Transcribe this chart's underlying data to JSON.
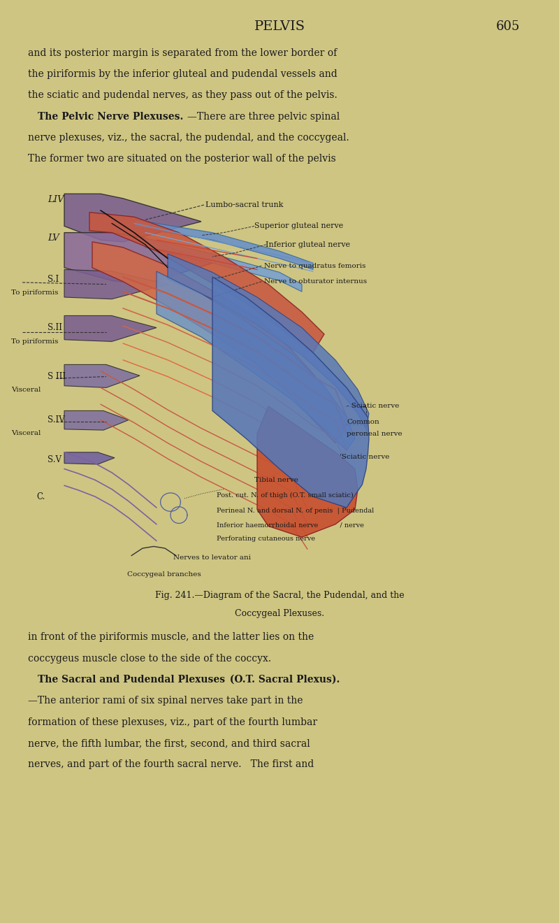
{
  "bg_color": "#cec583",
  "title": "PELVIS",
  "page_num": "605",
  "top_text_line1": "and its posterior margin is separated from the lower border of",
  "top_text_line2": "the piriformis by the inferior gluteal and pudendal vessels and",
  "top_text_line3": "the sciatic and pudendal nerves, as they pass out of the pelvis.",
  "top_text_line4_bold": "The Pelvic Nerve Plexuses.",
  "top_text_line4_rest": "—There are three pelvic spinal",
  "top_text_line5": "nerve plexuses, viz., the sacral, the pudendal, and the coccygeal.",
  "top_text_line6": "The former two are situated on the posterior wall of the pelvis",
  "caption1": "Fig. 241.—Diagram of the Sacral, the Pudendal, and the",
  "caption2": "Coccygeal Plexuses.",
  "bot_line1": "in front of the piriformis muscle, and the latter lies on the",
  "bot_line2": "coccygeus muscle close to the side of the coccyx.",
  "bot_line3_bold": "The Sacral and Pudendal Plexuses",
  "bot_line3_bold2": "(O.T. Sacral Plexus).",
  "bot_line4": "—The anterior rami of six spinal nerves take part in the",
  "bot_line5": "formation of these plexuses, viz., part of the fourth lumbar",
  "bot_line6": "nerve, the fifth lumbar, the first, second, and third sacral",
  "bot_line7": "nerves, and part of the fourth sacral nerve.   The first and",
  "label_LIV": "LIV",
  "label_LV": "LV",
  "label_SI": "S.I",
  "label_topir": "To piriformis",
  "label_SII": "S.II",
  "label_SIII": "S III",
  "label_visceral": "Visceral",
  "label_SIV": "S.IV",
  "label_SV": "S.V",
  "label_C": "C.",
  "label_lumbosacral": "Lumbo-sacral trunk",
  "label_supglut": "Superior gluteal nerve",
  "label_infglut": "Inferior gluteal nerve",
  "label_quadfem": "Nerve to quadratus femoris",
  "label_obturator": "Nerve to obturator internus",
  "label_sciatic1": "- Sciatic nerve",
  "label_common": "Common",
  "label_peroneal": "peroneal nerve",
  "label_sciatic2": "Sciatic nerve",
  "label_tibial": "Tibial nerve",
  "label_postcut": "Post. cut. N. of thigh (O.T. small sciatic)",
  "label_perineal": "Perineal N. and dorsal N. of penis  | Pudendal",
  "label_inferior": "Inferior haemorrhoidal nerve          / nerve",
  "label_perforating": "Perforating cutaneous nerve",
  "label_levator": "Nerves to levator ani",
  "label_coccygeal": "Coccygeal branches"
}
